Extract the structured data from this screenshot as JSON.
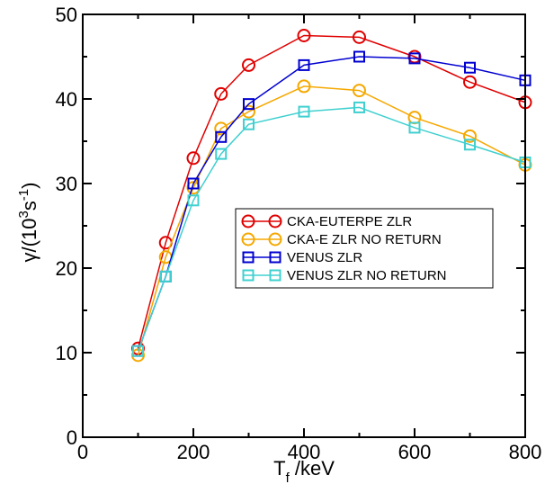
{
  "chart_data": {
    "type": "line",
    "xlabel": {
      "main": "T",
      "sub": "f",
      "rest": " /keV"
    },
    "ylabel": {
      "pre": "γ/(10",
      "sup1": "3",
      "mid": "s",
      "sup2": "-1",
      "post": ")"
    },
    "xlim": [
      0,
      800
    ],
    "ylim": [
      0,
      50
    ],
    "xticks": [
      0,
      200,
      400,
      600,
      800
    ],
    "yticks": [
      0,
      10,
      20,
      30,
      40,
      50
    ],
    "xtick_labels": [
      "0",
      "200",
      "400",
      "600",
      "800"
    ],
    "ytick_labels": [
      "0",
      "10",
      "20",
      "30",
      "40",
      "50"
    ],
    "grid": false,
    "legend_position": "center-right",
    "series": [
      {
        "name": "CKA-EUTERPE ZLR",
        "color": "#e00000",
        "marker": "circle",
        "x": [
          100,
          150,
          200,
          250,
          300,
          400,
          500,
          600,
          700,
          800
        ],
        "y": [
          10.5,
          23.0,
          33.0,
          40.6,
          44.0,
          47.5,
          47.3,
          45.0,
          42.0,
          39.6
        ]
      },
      {
        "name": "CKA-E ZLR NO RETURN",
        "color": "#f5a800",
        "marker": "circle",
        "x": [
          100,
          150,
          200,
          250,
          300,
          400,
          500,
          600,
          700,
          800
        ],
        "y": [
          9.7,
          21.3,
          29.5,
          36.5,
          38.5,
          41.5,
          41.0,
          37.8,
          35.6,
          32.2
        ]
      },
      {
        "name": "VENUS ZLR",
        "color": "#0000d0",
        "marker": "square",
        "x": [
          100,
          150,
          200,
          250,
          300,
          400,
          500,
          600,
          700,
          800
        ],
        "y": [
          10.2,
          19.0,
          30.0,
          35.5,
          39.4,
          44.0,
          45.0,
          44.8,
          43.7,
          42.2
        ]
      },
      {
        "name": "VENUS ZLR NO RETURN",
        "color": "#40d0d0",
        "marker": "square",
        "x": [
          100,
          150,
          200,
          250,
          300,
          400,
          500,
          600,
          700,
          800
        ],
        "y": [
          10.2,
          19.0,
          28.0,
          33.5,
          37.0,
          38.5,
          39.0,
          36.6,
          34.6,
          32.5
        ]
      }
    ]
  }
}
